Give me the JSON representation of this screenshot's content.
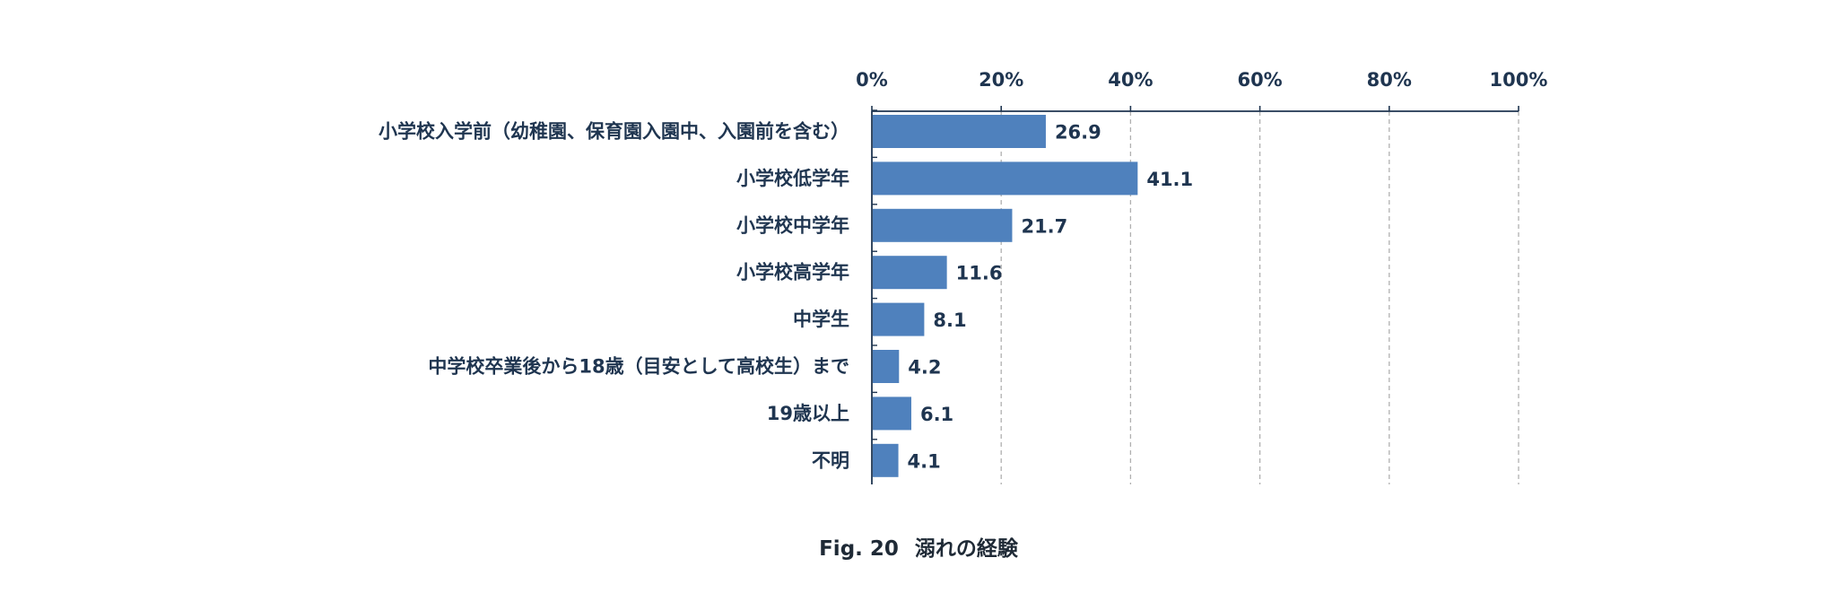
{
  "chart_data": {
    "type": "bar",
    "orientation": "horizontal",
    "categories": [
      "小学校入学前（幼稚園、保育園入園中、入園前を含む）",
      "小学校低学年",
      "小学校中学年",
      "小学校高学年",
      "中学生",
      "中学校卒業後から18歳（目安として高校生）まで",
      "19歳以上",
      "不明"
    ],
    "values": [
      26.9,
      41.1,
      21.7,
      11.6,
      8.1,
      4.2,
      6.1,
      4.1
    ],
    "value_labels": [
      "26.9",
      "41.1",
      "21.7",
      "11.6",
      "8.1",
      "4.2",
      "6.1",
      "4.1"
    ],
    "xlim": [
      0,
      100
    ],
    "x_ticks": [
      0,
      20,
      40,
      60,
      80,
      100
    ],
    "x_tick_labels": [
      "0%",
      "20%",
      "40%",
      "60%",
      "80%",
      "100%"
    ],
    "x_axis_position": "top",
    "grid": "vertical dashed",
    "legend": "none",
    "bar_color": "#4f81bd",
    "text_color": "#1f3550",
    "axis_color": "#1f3550",
    "grid_color": "#b0b0b0"
  },
  "caption": {
    "figure_number": "Fig. 20",
    "title": "溺れの経験"
  }
}
